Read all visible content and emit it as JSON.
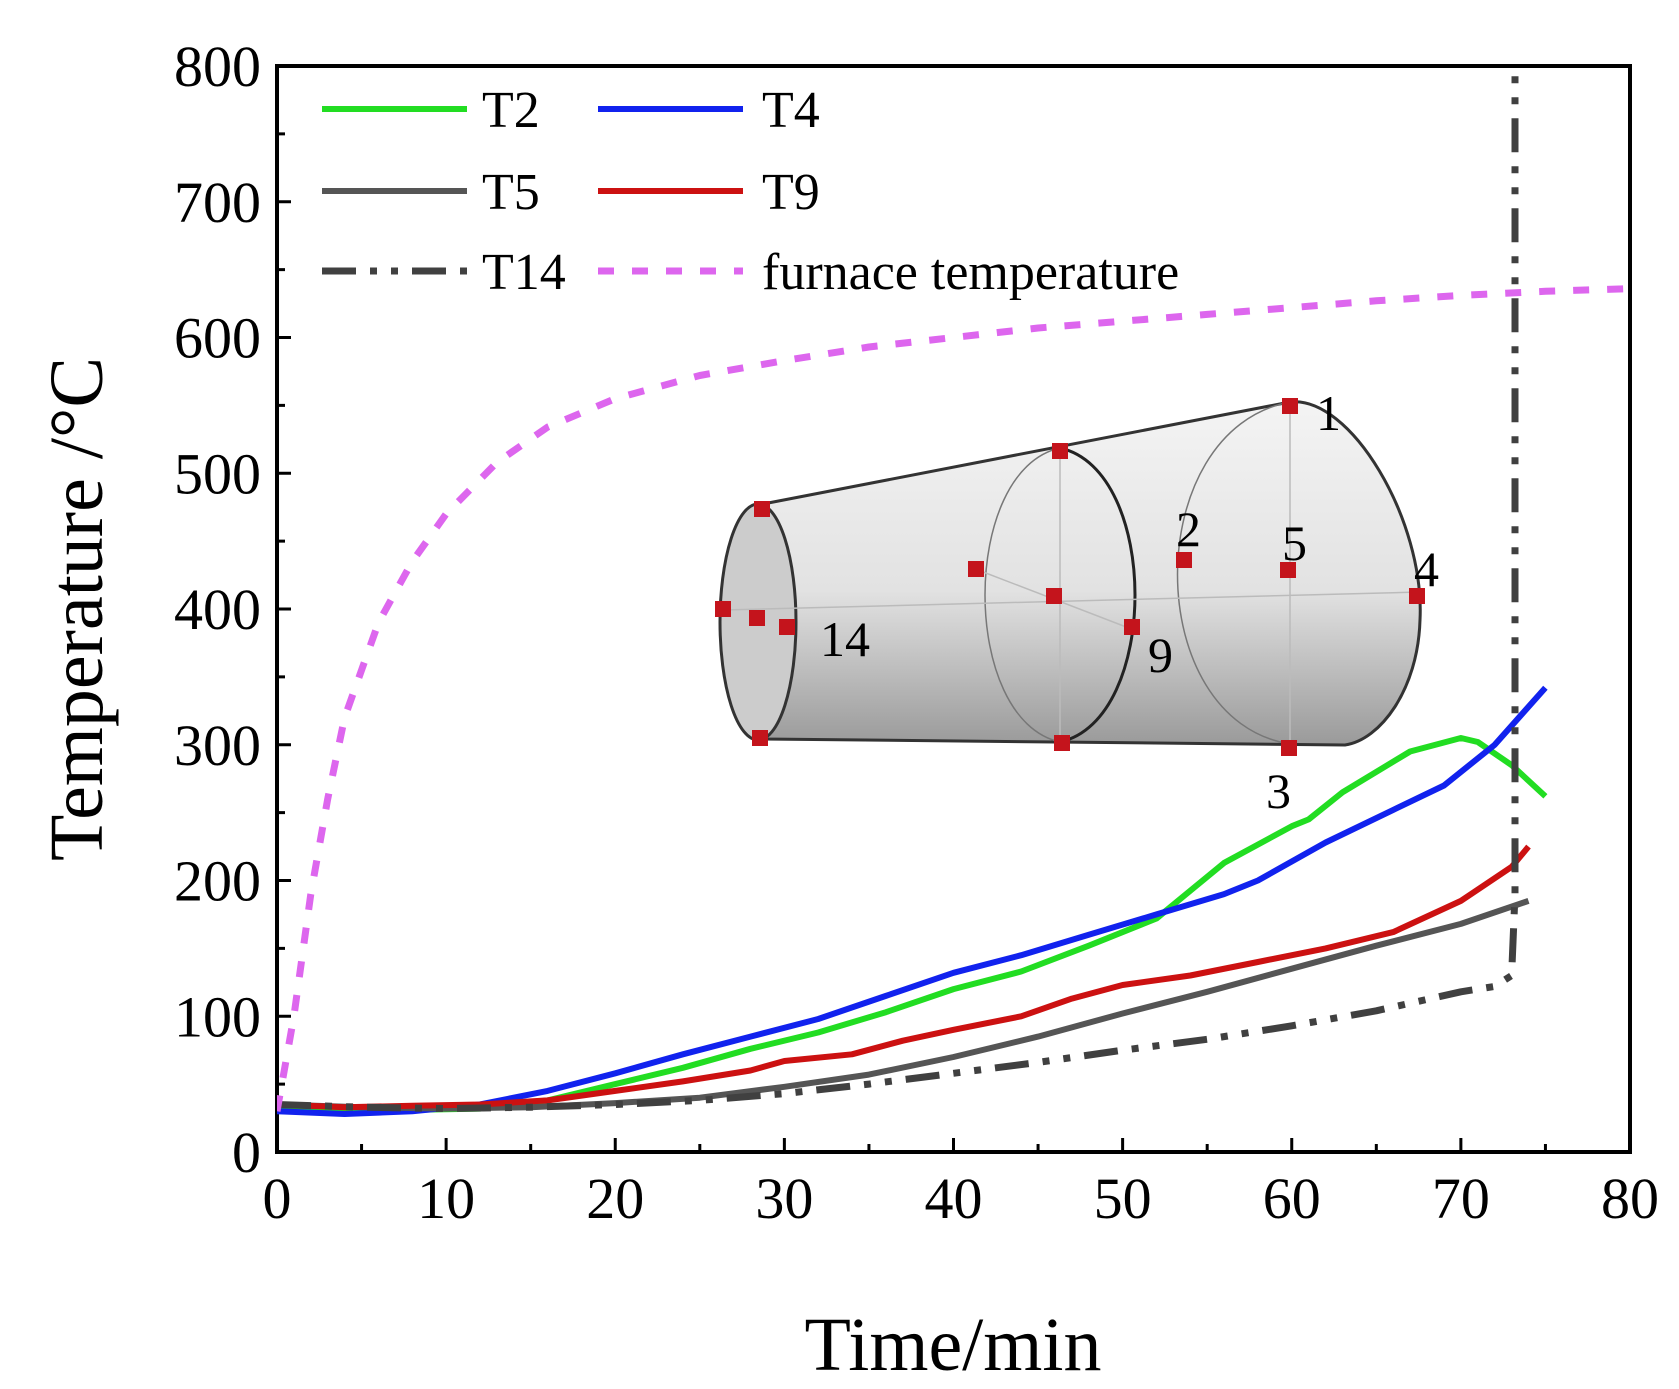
{
  "chart_data": {
    "type": "line",
    "title": "",
    "xlabel": "Time/min",
    "ylabel": "Temperature /°C",
    "xlim": [
      0,
      80
    ],
    "ylim": [
      0,
      800
    ],
    "xticks": [
      "0",
      "10",
      "20",
      "30",
      "40",
      "50",
      "60",
      "70",
      "80"
    ],
    "yticks": [
      "0",
      "100",
      "200",
      "300",
      "400",
      "500",
      "600",
      "700",
      "800"
    ],
    "legend_position": "top-left",
    "series": [
      {
        "name": "T2",
        "color": "#22dd22",
        "style": "solid",
        "points": [
          [
            0,
            33
          ],
          [
            4,
            31
          ],
          [
            8,
            31
          ],
          [
            12,
            32
          ],
          [
            16,
            38
          ],
          [
            20,
            50
          ],
          [
            24,
            62
          ],
          [
            28,
            76
          ],
          [
            32,
            88
          ],
          [
            36,
            103
          ],
          [
            40,
            120
          ],
          [
            44,
            133
          ],
          [
            48,
            152
          ],
          [
            52,
            172
          ],
          [
            56,
            213
          ],
          [
            60,
            240
          ],
          [
            61,
            245
          ],
          [
            63,
            265
          ],
          [
            67,
            295
          ],
          [
            70,
            305
          ],
          [
            71,
            302
          ],
          [
            73,
            285
          ],
          [
            75,
            262
          ]
        ]
      },
      {
        "name": "T4",
        "color": "#1122ee",
        "style": "solid",
        "points": [
          [
            0,
            30
          ],
          [
            4,
            28
          ],
          [
            8,
            30
          ],
          [
            12,
            35
          ],
          [
            16,
            45
          ],
          [
            20,
            58
          ],
          [
            24,
            72
          ],
          [
            28,
            85
          ],
          [
            32,
            98
          ],
          [
            36,
            115
          ],
          [
            40,
            132
          ],
          [
            44,
            145
          ],
          [
            48,
            160
          ],
          [
            52,
            175
          ],
          [
            56,
            190
          ],
          [
            58,
            200
          ],
          [
            62,
            228
          ],
          [
            66,
            252
          ],
          [
            69,
            270
          ],
          [
            72,
            300
          ],
          [
            75,
            342
          ]
        ]
      },
      {
        "name": "T5",
        "color": "#555555",
        "style": "solid",
        "points": [
          [
            0,
            35
          ],
          [
            5,
            33
          ],
          [
            10,
            32
          ],
          [
            15,
            33
          ],
          [
            20,
            36
          ],
          [
            25,
            40
          ],
          [
            30,
            48
          ],
          [
            35,
            57
          ],
          [
            40,
            70
          ],
          [
            45,
            85
          ],
          [
            50,
            102
          ],
          [
            55,
            118
          ],
          [
            60,
            135
          ],
          [
            65,
            152
          ],
          [
            70,
            168
          ],
          [
            74,
            185
          ]
        ]
      },
      {
        "name": "T9",
        "color": "#cc1111",
        "style": "solid",
        "points": [
          [
            0,
            35
          ],
          [
            4,
            33
          ],
          [
            8,
            34
          ],
          [
            12,
            35
          ],
          [
            16,
            38
          ],
          [
            20,
            45
          ],
          [
            24,
            52
          ],
          [
            28,
            60
          ],
          [
            30,
            67
          ],
          [
            34,
            72
          ],
          [
            37,
            82
          ],
          [
            40,
            90
          ],
          [
            44,
            100
          ],
          [
            47,
            113
          ],
          [
            50,
            123
          ],
          [
            54,
            130
          ],
          [
            58,
            140
          ],
          [
            62,
            150
          ],
          [
            66,
            162
          ],
          [
            70,
            185
          ],
          [
            73,
            210
          ],
          [
            74,
            225
          ]
        ]
      },
      {
        "name": "T14",
        "color": "#404040",
        "style": "dashdotdot",
        "points": [
          [
            0,
            35
          ],
          [
            5,
            33
          ],
          [
            10,
            32
          ],
          [
            15,
            33
          ],
          [
            20,
            35
          ],
          [
            25,
            38
          ],
          [
            30,
            43
          ],
          [
            35,
            50
          ],
          [
            40,
            58
          ],
          [
            45,
            66
          ],
          [
            50,
            75
          ],
          [
            55,
            83
          ],
          [
            60,
            93
          ],
          [
            65,
            104
          ],
          [
            70,
            118
          ],
          [
            72,
            122
          ],
          [
            73,
            130
          ],
          [
            73.2,
            190
          ],
          [
            73.2,
            450
          ],
          [
            73.2,
            795
          ]
        ]
      },
      {
        "name": "furnace temperature",
        "color": "#dd66ee",
        "style": "dashed",
        "points": [
          [
            0,
            30
          ],
          [
            1,
            100
          ],
          [
            2,
            190
          ],
          [
            3,
            260
          ],
          [
            4,
            320
          ],
          [
            6,
            390
          ],
          [
            8,
            435
          ],
          [
            10,
            470
          ],
          [
            13,
            508
          ],
          [
            16,
            534
          ],
          [
            20,
            555
          ],
          [
            25,
            572
          ],
          [
            30,
            583
          ],
          [
            35,
            593
          ],
          [
            40,
            600
          ],
          [
            45,
            607
          ],
          [
            50,
            612
          ],
          [
            55,
            617
          ],
          [
            60,
            622
          ],
          [
            65,
            627
          ],
          [
            70,
            631
          ],
          [
            75,
            634
          ],
          [
            80,
            636
          ]
        ]
      }
    ],
    "inset": {
      "description_labels": [
        "1",
        "2",
        "3",
        "4",
        "5",
        "9",
        "14"
      ]
    }
  }
}
